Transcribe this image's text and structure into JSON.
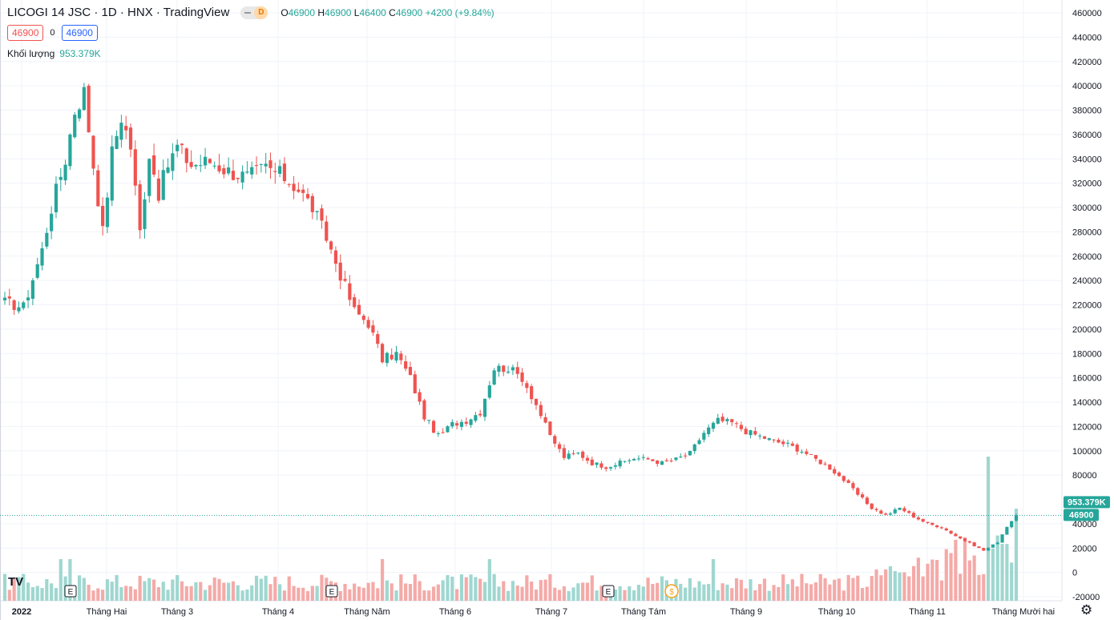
{
  "header": {
    "symbol_title": "LICOGI 14 JSC · 1D · HNX · TradingView",
    "interval_badge": "D",
    "ohlc": {
      "o_label": "O",
      "o": "46900",
      "h_label": "H",
      "h": "46900",
      "l_label": "L",
      "l": "46400",
      "c_label": "C",
      "c": "46900",
      "change": "+4200 (+9.84%)"
    },
    "bid": "46900",
    "spread": "0",
    "ask": "46900",
    "volume_label": "Khối lượng",
    "volume_value": "953.379K"
  },
  "colors": {
    "up": "#26a69a",
    "down": "#ef5350",
    "volume_up": "#9fd7d0",
    "volume_down": "#f4aaa8",
    "grid": "#f0f3fa",
    "axis_text": "#131722",
    "last_price_label": "#26a69a"
  },
  "icons": {
    "tradingview_logo": "TV",
    "earnings_marker": "E",
    "dividend_marker": "$",
    "settings": "gear-icon"
  },
  "chart_data": {
    "type": "candlestick",
    "y_axis_ticks": [
      460000,
      440000,
      420000,
      400000,
      380000,
      360000,
      340000,
      320000,
      300000,
      280000,
      260000,
      240000,
      220000,
      200000,
      180000,
      160000,
      140000,
      120000,
      100000,
      80000,
      40000,
      20000,
      0,
      -20000
    ],
    "y_axis_tick_labels": [
      "460000",
      "440000",
      "420000",
      "400000",
      "380000",
      "360000",
      "340000",
      "320000",
      "300000",
      "280000",
      "260000",
      "240000",
      "220000",
      "200000",
      "180000",
      "160000",
      "140000",
      "120000",
      "100000",
      "80000",
      "40000",
      "20000",
      "0",
      "-20000"
    ],
    "ylim": [
      -20000,
      470000
    ],
    "x_axis_labels": [
      "2022",
      "Tháng Hai",
      "Tháng 3",
      "Tháng 4",
      "Tháng Năm",
      "Tháng 6",
      "Tháng 7",
      "Tháng Tám",
      "Tháng 9",
      "Tháng 10",
      "Tháng 11",
      "Tháng Mười hai"
    ],
    "last_price": 46900,
    "last_price_label": "46900",
    "last_volume_label": "953.379K",
    "anchors": [
      [
        0,
        222000
      ],
      [
        4,
        218000
      ],
      [
        8,
        265000
      ],
      [
        10,
        300000
      ],
      [
        13,
        340000
      ],
      [
        15,
        380000
      ],
      [
        17,
        395000
      ],
      [
        19,
        335000
      ],
      [
        21,
        280000
      ],
      [
        23,
        345000
      ],
      [
        25,
        375000
      ],
      [
        27,
        350000
      ],
      [
        29,
        280000
      ],
      [
        31,
        345000
      ],
      [
        33,
        312000
      ],
      [
        35,
        335000
      ],
      [
        37,
        350000
      ],
      [
        40,
        335000
      ],
      [
        44,
        338000
      ],
      [
        48,
        330000
      ],
      [
        52,
        325000
      ],
      [
        56,
        333000
      ],
      [
        60,
        325000
      ],
      [
        63,
        315000
      ],
      [
        66,
        300000
      ],
      [
        69,
        275000
      ],
      [
        72,
        245000
      ],
      [
        75,
        215000
      ],
      [
        78,
        205000
      ],
      [
        81,
        175000
      ],
      [
        84,
        180000
      ],
      [
        87,
        160000
      ],
      [
        90,
        128000
      ],
      [
        93,
        112000
      ],
      [
        96,
        122000
      ],
      [
        99,
        125000
      ],
      [
        102,
        132000
      ],
      [
        105,
        168000
      ],
      [
        108,
        168000
      ],
      [
        111,
        160000
      ],
      [
        114,
        138000
      ],
      [
        117,
        112000
      ],
      [
        120,
        95000
      ],
      [
        123,
        98000
      ],
      [
        126,
        90000
      ],
      [
        129,
        87000
      ],
      [
        132,
        90000
      ],
      [
        135,
        94000
      ],
      [
        138,
        93000
      ],
      [
        141,
        90000
      ],
      [
        144,
        93000
      ],
      [
        147,
        98000
      ],
      [
        150,
        115000
      ],
      [
        153,
        125000
      ],
      [
        156,
        123000
      ],
      [
        159,
        116000
      ],
      [
        162,
        112000
      ],
      [
        165,
        108000
      ],
      [
        168,
        105000
      ],
      [
        171,
        100000
      ],
      [
        174,
        93000
      ],
      [
        177,
        86000
      ],
      [
        180,
        76000
      ],
      [
        183,
        64000
      ],
      [
        186,
        53000
      ],
      [
        189,
        47000
      ],
      [
        192,
        53000
      ],
      [
        195,
        46000
      ],
      [
        198,
        40000
      ],
      [
        201,
        37000
      ],
      [
        204,
        30000
      ],
      [
        207,
        24000
      ],
      [
        210,
        18000
      ],
      [
        213,
        25000
      ],
      [
        215,
        38000
      ],
      [
        217,
        46900
      ]
    ],
    "volume_bars_total": 217,
    "earnings_marker_labels": [
      "E",
      "E",
      "E"
    ],
    "dividend_marker_label": "$"
  }
}
